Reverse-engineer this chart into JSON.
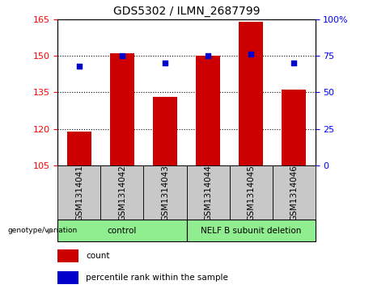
{
  "title": "GDS5302 / ILMN_2687799",
  "samples": [
    "GSM1314041",
    "GSM1314042",
    "GSM1314043",
    "GSM1314044",
    "GSM1314045",
    "GSM1314046"
  ],
  "counts": [
    119,
    151,
    133,
    150,
    164,
    136
  ],
  "percentiles": [
    68,
    75,
    70,
    75,
    76,
    70
  ],
  "ylim_left": [
    105,
    165
  ],
  "ylim_right": [
    0,
    100
  ],
  "yticks_left": [
    105,
    120,
    135,
    150,
    165
  ],
  "yticks_right": [
    0,
    25,
    50,
    75,
    100
  ],
  "bar_color": "#cc0000",
  "point_color": "#0000cc",
  "bar_bottom": 105,
  "control_label": "control",
  "nelf_label": "NELF B subunit deletion",
  "group_bg_color": "#90ee90",
  "sample_bg_color": "#c8c8c8",
  "genotype_label": "genotype/variation",
  "legend_count": "count",
  "legend_pct": "percentile rank within the sample",
  "dotted_lines": [
    120,
    135,
    150
  ],
  "title_fontsize": 10,
  "tick_fontsize": 8,
  "label_fontsize": 7.5,
  "legend_fontsize": 7.5
}
